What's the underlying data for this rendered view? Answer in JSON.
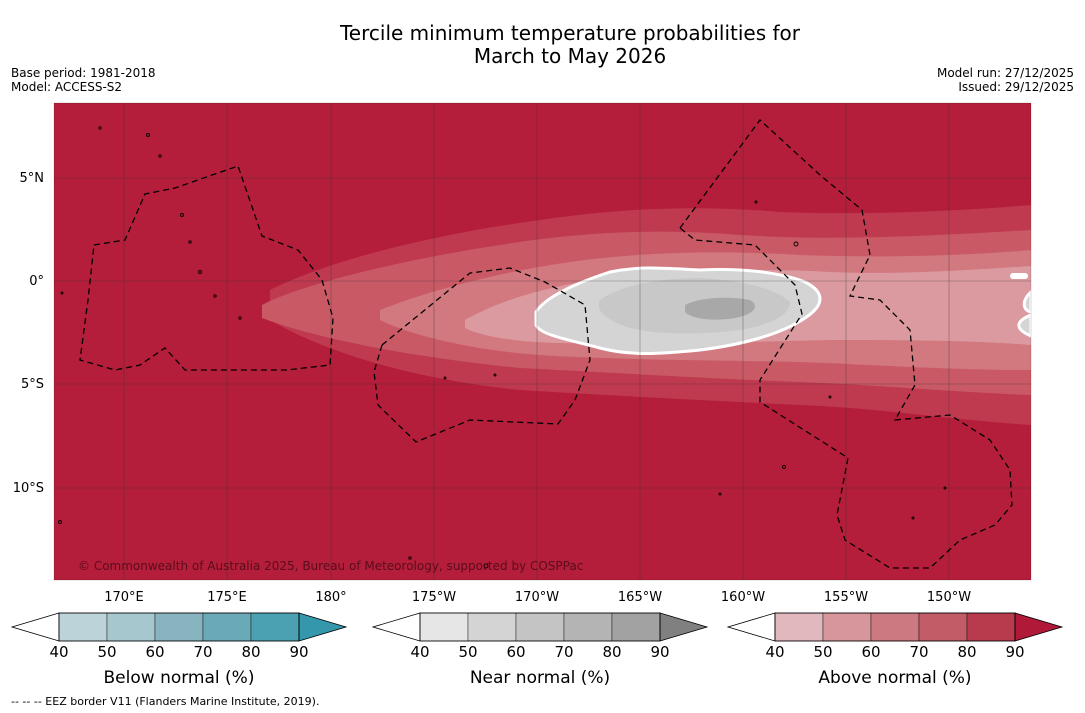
{
  "header": {
    "title_line1": "Tercile minimum temperature probabilities for",
    "title_line2": "March to May 2026",
    "base_period": "Base period: 1981-2018",
    "model": "Model: ACCESS-S2",
    "model_run": "Model run: 27/12/2025",
    "issued": "Issued: 29/12/2025"
  },
  "map": {
    "lat_labels": [
      "5°N",
      "0°",
      "5°S",
      "10°S"
    ],
    "lon_labels": [
      "170°E",
      "175°E",
      "180°",
      "175°W",
      "170°W",
      "165°W",
      "160°W",
      "155°W",
      "150°W"
    ],
    "copyright": "© Commonwealth of Australia 2025, Bureau of Meteorology, supported by COSPPac",
    "colors": {
      "above_90": "#b41e3a",
      "above_80": "#bf3a4f",
      "above_70": "#c95a65",
      "above_60": "#d2787f",
      "above_50": "#db9aa0",
      "near_70": "#c8c8c8",
      "near_80": "#a8a8a8",
      "near_60": "#d4d4d4"
    }
  },
  "colorbars": [
    {
      "title": "Below normal (%)",
      "ticks": [
        "40",
        "50",
        "60",
        "70",
        "80",
        "90"
      ],
      "colors": [
        "#bcd3da",
        "#a6c7ce",
        "#88b4c0",
        "#6aa9b8",
        "#4ba0b2",
        "#3597ab"
      ]
    },
    {
      "title": "Near normal (%)",
      "ticks": [
        "40",
        "50",
        "60",
        "70",
        "80",
        "90"
      ],
      "colors": [
        "#e6e6e6",
        "#d4d4d4",
        "#c4c4c4",
        "#b4b4b4",
        "#a2a2a2",
        "#808080"
      ]
    },
    {
      "title": "Above normal (%)",
      "ticks": [
        "40",
        "50",
        "60",
        "70",
        "80",
        "90"
      ],
      "colors": [
        "#e0b8bd",
        "#d6969c",
        "#cb7a82",
        "#c25d68",
        "#b83a4d",
        "#b01a38"
      ]
    }
  ],
  "footnote": "--  --  -- EEZ border V11 (Flanders Marine Institute, 2019)."
}
